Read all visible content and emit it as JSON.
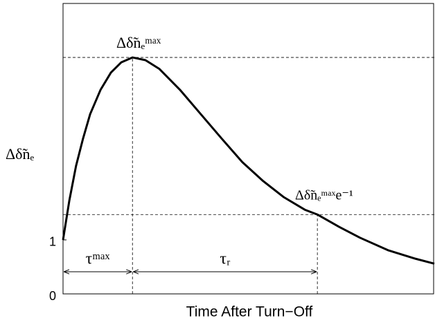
{
  "chart_data": {
    "type": "line",
    "ylabel": "Δδ̃nₑ",
    "xlabel": "Time After Turn−Off",
    "x": [
      0,
      0.17,
      0.35,
      0.54,
      0.73,
      1.01,
      1.29,
      1.57,
      1.87,
      2.22,
      2.59,
      3.15,
      3.71,
      4.27,
      4.83,
      5.39,
      5.95,
      6.51,
      6.85,
      7.44,
      8.0,
      8.75,
      9.5,
      10
    ],
    "series": [
      {
        "color": "#000000",
        "values": [
          1.0,
          1.73,
          2.37,
          2.88,
          3.33,
          3.78,
          4.1,
          4.29,
          4.38,
          4.33,
          4.17,
          3.78,
          3.33,
          2.88,
          2.44,
          2.09,
          1.79,
          1.56,
          1.47,
          1.24,
          1.04,
          0.81,
          0.65,
          0.56
        ]
      }
    ],
    "xlim": [
      0,
      10
    ],
    "ylim": [
      0,
      5.38
    ],
    "yticks": [
      0,
      1
    ],
    "hlines": [
      4.38,
      1.47
    ],
    "vlines": [
      1.87,
      6.85
    ],
    "annotations": [
      "Δδ̃nₑᵐᵃˣ",
      "Δδ̃nₑᵐᵃˣe⁻¹",
      "τᵐᵃˣ",
      "τᵣ"
    ]
  }
}
